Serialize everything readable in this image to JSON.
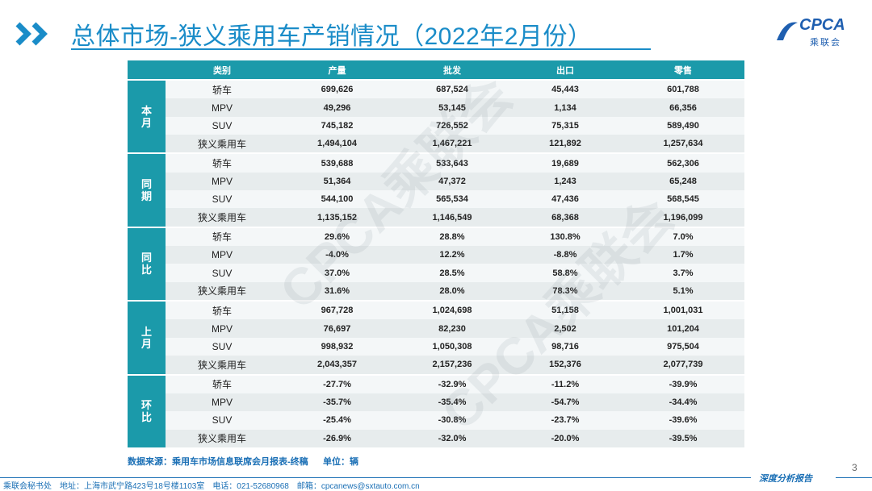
{
  "header": {
    "title": "总体市场-狭义乘用车产销情况（2022年2月份）",
    "logo": "CPCA",
    "logo_sub": "乘联会"
  },
  "watermark": "CPCA乘联会",
  "table": {
    "columns": [
      "类别",
      "产量",
      "批发",
      "出口",
      "零售"
    ],
    "groups": [
      {
        "label": "本月",
        "rows": [
          [
            "轿车",
            "699,626",
            "687,524",
            "45,443",
            "601,788"
          ],
          [
            "MPV",
            "49,296",
            "53,145",
            "1,134",
            "66,356"
          ],
          [
            "SUV",
            "745,182",
            "726,552",
            "75,315",
            "589,490"
          ],
          [
            "狭义乘用车",
            "1,494,104",
            "1,467,221",
            "121,892",
            "1,257,634"
          ]
        ]
      },
      {
        "label": "同期",
        "rows": [
          [
            "轿车",
            "539,688",
            "533,643",
            "19,689",
            "562,306"
          ],
          [
            "MPV",
            "51,364",
            "47,372",
            "1,243",
            "65,248"
          ],
          [
            "SUV",
            "544,100",
            "565,534",
            "47,436",
            "568,545"
          ],
          [
            "狭义乘用车",
            "1,135,152",
            "1,146,549",
            "68,368",
            "1,196,099"
          ]
        ]
      },
      {
        "label": "同比",
        "rows": [
          [
            "轿车",
            "29.6%",
            "28.8%",
            "130.8%",
            "7.0%"
          ],
          [
            "MPV",
            "-4.0%",
            "12.2%",
            "-8.8%",
            "1.7%"
          ],
          [
            "SUV",
            "37.0%",
            "28.5%",
            "58.8%",
            "3.7%"
          ],
          [
            "狭义乘用车",
            "31.6%",
            "28.0%",
            "78.3%",
            "5.1%"
          ]
        ]
      },
      {
        "label": "上月",
        "rows": [
          [
            "轿车",
            "967,728",
            "1,024,698",
            "51,158",
            "1,001,031"
          ],
          [
            "MPV",
            "76,697",
            "82,230",
            "2,502",
            "101,204"
          ],
          [
            "SUV",
            "998,932",
            "1,050,308",
            "98,716",
            "975,504"
          ],
          [
            "狭义乘用车",
            "2,043,357",
            "2,157,236",
            "152,376",
            "2,077,739"
          ]
        ]
      },
      {
        "label": "环比",
        "rows": [
          [
            "轿车",
            "-27.7%",
            "-32.9%",
            "-11.2%",
            "-39.9%"
          ],
          [
            "MPV",
            "-35.7%",
            "-35.4%",
            "-54.7%",
            "-34.4%"
          ],
          [
            "SUV",
            "-25.4%",
            "-30.8%",
            "-23.7%",
            "-39.6%"
          ],
          [
            "狭义乘用车",
            "-26.9%",
            "-32.0%",
            "-20.0%",
            "-39.5%"
          ]
        ]
      }
    ]
  },
  "footnote": {
    "source": "数据来源：乘用车市场信息联席会月报表-终稿",
    "unit": "单位：辆"
  },
  "footer": {
    "page": "3",
    "report": "深度分析报告",
    "contact": [
      "乘联会秘书处",
      "地址：上海市武宁路423号18号楼1103室",
      "电话：021-52680968",
      "邮箱：cpcanews@sxtauto.com.cn"
    ]
  }
}
